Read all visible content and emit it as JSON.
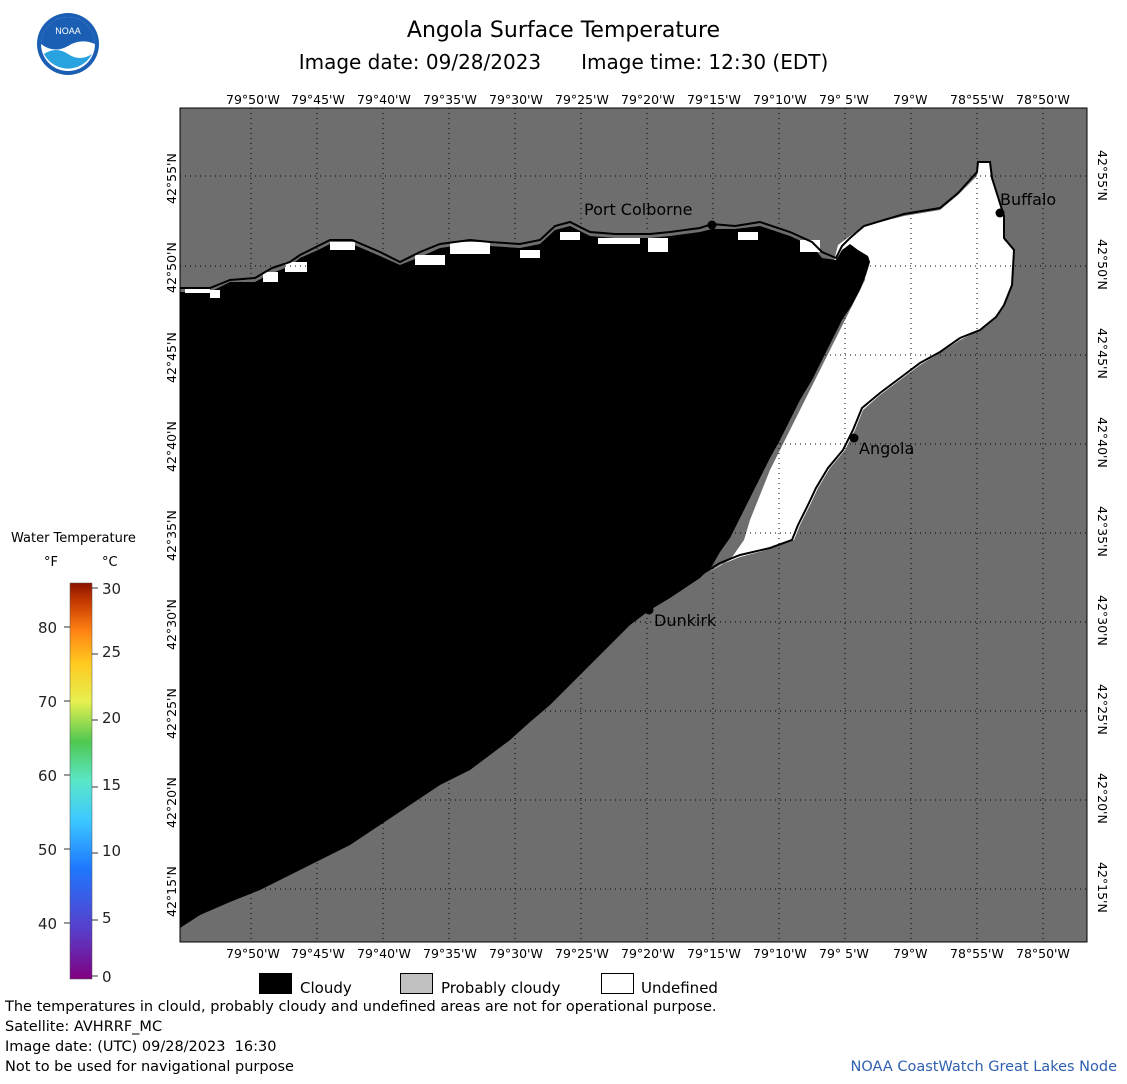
{
  "header": {
    "title": "Angola Surface Temperature",
    "image_date_label": "Image date: 09/28/2023",
    "image_time_label": "Image time: 12:30 (EDT)"
  },
  "map": {
    "longitude_labels": [
      "79°50'W",
      "79°45'W",
      "79°40'W",
      "79°35'W",
      "79°30'W",
      "79°25'W",
      "79°20'W",
      "79°15'W",
      "79°10'W",
      "79° 5'W",
      "79°W",
      "78°55'W",
      "78°50'W"
    ],
    "latitude_labels": [
      "42°55'N",
      "42°50'N",
      "42°45'N",
      "42°40'N",
      "42°35'N",
      "42°30'N",
      "42°25'N",
      "42°20'N",
      "42°15'N"
    ],
    "cities": [
      {
        "name": "Port Colborne"
      },
      {
        "name": "Buffalo"
      },
      {
        "name": "Angola"
      },
      {
        "name": "Dunkirk"
      }
    ],
    "colors": {
      "land": "#6e6e6e",
      "cloudy": "#000000",
      "undefined": "#ffffff",
      "probably_cloudy": "#c0c0c0"
    }
  },
  "legend": {
    "title": "Water Temperature",
    "unit_f": "°F",
    "unit_c": "°C",
    "fahrenheit_ticks": [
      "80",
      "70",
      "60",
      "50",
      "40"
    ],
    "celsius_ticks": [
      "30",
      "25",
      "20",
      "15",
      "10",
      "5",
      "0"
    ]
  },
  "key": {
    "cloudy": "Cloudy",
    "probably_cloudy": "Probably cloudy",
    "undefined": "Undefined"
  },
  "footer": {
    "disclaimer": "The temperatures in clould, probably cloudy and undefined areas are not for operational purpose.",
    "satellite": "Satellite: AVHRRF_MC",
    "utc_date": "Image date: (UTC) 09/28/2023  16:30",
    "navigation": "Not to be used for navigational purpose",
    "credit": "NOAA CoastWatch Great Lakes Node"
  }
}
